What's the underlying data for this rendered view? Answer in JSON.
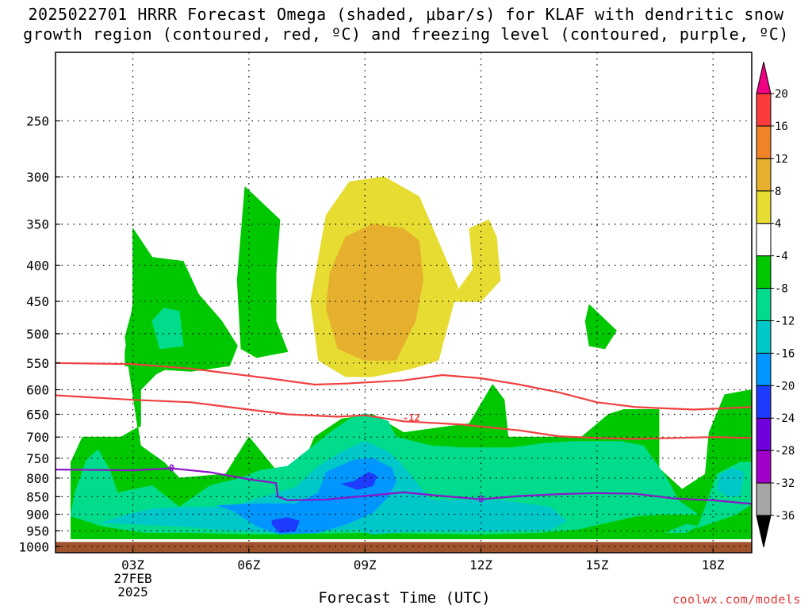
{
  "title": {
    "line1": "2025022701 HRRR Forecast Omega (shaded, μbar/s) for KLAF with dendritic snow",
    "line2": "growth region (contoured, red, ºC) and freezing level (contoured, purple, ºC)"
  },
  "xlabel": "Forecast Time (UTC)",
  "credit": "coolwx.com/models",
  "chart_data": {
    "type": "heatmap",
    "x": {
      "unit": "hour UTC",
      "range": [
        1,
        19
      ],
      "ticks": [
        {
          "value": 3,
          "label": "03Z",
          "sub": [
            "27FEB",
            "2025"
          ]
        },
        {
          "value": 6,
          "label": "06Z"
        },
        {
          "value": 9,
          "label": "09Z"
        },
        {
          "value": 12,
          "label": "12Z"
        },
        {
          "value": 15,
          "label": "15Z"
        },
        {
          "value": 18,
          "label": "18Z"
        }
      ]
    },
    "y": {
      "unit": "hPa",
      "scale": "log",
      "range": [
        1020,
        200
      ],
      "ticks": [
        250,
        300,
        350,
        400,
        450,
        500,
        550,
        600,
        650,
        700,
        750,
        800,
        850,
        900,
        950,
        1000
      ]
    },
    "ground_band": {
      "from": 985,
      "to": 1020,
      "color": "#a0522d"
    },
    "grid": true,
    "colorbar": {
      "levels": [
        -36,
        -32,
        -28,
        -24,
        -20,
        -16,
        -12,
        -8,
        -4,
        4,
        8,
        12,
        16,
        20
      ],
      "colors": [
        "#000000",
        "#a6a6a6",
        "#a000c8",
        "#6e00dc",
        "#1e3cff",
        "#0096ff",
        "#00c8c8",
        "#00dc8c",
        "#00c800",
        "#ffffff",
        "#e6dc32",
        "#e6af2d",
        "#f08228",
        "#fa3c3c",
        "#f00082"
      ]
    },
    "omega_regions": [
      {
        "level": "-8 to -4",
        "color": "#00c800",
        "points": [
          [
            1.4,
            975
          ],
          [
            19,
            975
          ],
          [
            19,
            600
          ],
          [
            18.3,
            610
          ],
          [
            17.9,
            690
          ],
          [
            17.8,
            790
          ],
          [
            17.2,
            830
          ],
          [
            16.6,
            775
          ],
          [
            16.6,
            640
          ],
          [
            15.9,
            640
          ],
          [
            15.7,
            640
          ],
          [
            15.3,
            650
          ],
          [
            14.6,
            700
          ],
          [
            12.7,
            700
          ],
          [
            12.6,
            620
          ],
          [
            12.3,
            590
          ],
          [
            11.7,
            670
          ],
          [
            10,
            690
          ],
          [
            9.2,
            650
          ],
          [
            8.4,
            660
          ],
          [
            7.7,
            700
          ],
          [
            7.3,
            790
          ],
          [
            6.7,
            780
          ],
          [
            6,
            700
          ],
          [
            5.4,
            790
          ],
          [
            4.2,
            800
          ],
          [
            3.8,
            760
          ],
          [
            3.2,
            720
          ],
          [
            2.9,
            560
          ],
          [
            2.8,
            505
          ],
          [
            3.2,
            420
          ],
          [
            4.1,
            435
          ],
          [
            4.7,
            490
          ],
          [
            4.6,
            535
          ],
          [
            3.6,
            570
          ],
          [
            3.2,
            600
          ],
          [
            3.2,
            675
          ],
          [
            2.7,
            700
          ],
          [
            1.7,
            700
          ],
          [
            1.4,
            760
          ]
        ]
      },
      {
        "level": "-8 to -4",
        "color": "#00c800",
        "points": [
          [
            2.8,
            555
          ],
          [
            2.8,
            530
          ],
          [
            3,
            455
          ],
          [
            3,
            355
          ],
          [
            3.5,
            390
          ],
          [
            4.3,
            395
          ],
          [
            4.7,
            440
          ],
          [
            5.3,
            480
          ],
          [
            5.7,
            520
          ],
          [
            5.5,
            555
          ],
          [
            4.5,
            565
          ],
          [
            3.4,
            560
          ]
        ]
      },
      {
        "level": "-8 to -4",
        "color": "#00c800",
        "points": [
          [
            5.8,
            525
          ],
          [
            5.7,
            420
          ],
          [
            5.9,
            310
          ],
          [
            6.8,
            345
          ],
          [
            6.7,
            410
          ],
          [
            6.7,
            480
          ],
          [
            7,
            530
          ],
          [
            6.2,
            540
          ]
        ]
      },
      {
        "level": "-8 to -4",
        "color": "#00c800",
        "points": [
          [
            14.7,
            480
          ],
          [
            14.8,
            455
          ],
          [
            15.5,
            495
          ],
          [
            15.2,
            525
          ],
          [
            14.8,
            520
          ]
        ]
      },
      {
        "level": "-12 to -8",
        "color": "#00dc8c",
        "points": [
          [
            1.4,
            905
          ],
          [
            1.5,
            840
          ],
          [
            1.8,
            755
          ],
          [
            2.1,
            730
          ],
          [
            2.4,
            780
          ],
          [
            2.6,
            840
          ],
          [
            3.5,
            820
          ],
          [
            4.2,
            880
          ],
          [
            5,
            820
          ],
          [
            5.8,
            800
          ],
          [
            6.3,
            780
          ],
          [
            7,
            770
          ],
          [
            8.1,
            690
          ],
          [
            8.6,
            660
          ],
          [
            9,
            648
          ],
          [
            9.6,
            665
          ],
          [
            9.8,
            700
          ],
          [
            10.7,
            720
          ],
          [
            11.5,
            725
          ],
          [
            12.8,
            725
          ],
          [
            13.6,
            715
          ],
          [
            14.4,
            710
          ],
          [
            15.6,
            710
          ],
          [
            16.2,
            720
          ],
          [
            16.8,
            800
          ],
          [
            17.1,
            860
          ],
          [
            17.6,
            900
          ],
          [
            17.3,
            900
          ],
          [
            16.7,
            900
          ],
          [
            16,
            905
          ],
          [
            14.5,
            945
          ],
          [
            13.5,
            955
          ],
          [
            12,
            960
          ],
          [
            9,
            955
          ],
          [
            6.2,
            960
          ],
          [
            4.5,
            955
          ],
          [
            3.3,
            955
          ],
          [
            2.2,
            935
          ]
        ]
      },
      {
        "level": "-12 to -8",
        "color": "#00dc8c",
        "points": [
          [
            3.5,
            480
          ],
          [
            3.8,
            460
          ],
          [
            4.2,
            465
          ],
          [
            4.3,
            520
          ],
          [
            3.7,
            525
          ]
        ]
      },
      {
        "level": "-12 to -8",
        "color": "#00dc8c",
        "points": [
          [
            17.6,
            940
          ],
          [
            17.8,
            880
          ],
          [
            18.1,
            790
          ],
          [
            18.7,
            760
          ],
          [
            19,
            760
          ],
          [
            19,
            870
          ],
          [
            18.6,
            900
          ]
        ]
      },
      {
        "level": "-12 to -8",
        "color": "#00dc8c",
        "points": [
          [
            16.8,
            955
          ],
          [
            17.3,
            930
          ],
          [
            17.6,
            935
          ],
          [
            17.3,
            955
          ]
        ]
      },
      {
        "level": "-16 to -12",
        "color": "#00c8c8",
        "points": [
          [
            2.2,
            925
          ],
          [
            2.9,
            900
          ],
          [
            3.5,
            885
          ],
          [
            4.5,
            880
          ],
          [
            5.5,
            880
          ],
          [
            6.1,
            860
          ],
          [
            7.2,
            825
          ],
          [
            7.8,
            770
          ],
          [
            8.4,
            735
          ],
          [
            9,
            710
          ],
          [
            9.6,
            735
          ],
          [
            9.9,
            760
          ],
          [
            10.7,
            860
          ],
          [
            12.5,
            860
          ],
          [
            13.8,
            880
          ],
          [
            14.2,
            920
          ],
          [
            13.8,
            945
          ],
          [
            12.2,
            950
          ],
          [
            10.3,
            950
          ],
          [
            9.2,
            960
          ],
          [
            8.8,
            945
          ],
          [
            6.6,
            955
          ],
          [
            5.2,
            945
          ],
          [
            4.2,
            935
          ]
        ]
      },
      {
        "level": "-16 to -12",
        "color": "#00c8c8",
        "points": [
          [
            18.1,
            830
          ],
          [
            18.2,
            790
          ],
          [
            18.5,
            775
          ],
          [
            18.8,
            785
          ],
          [
            18.7,
            845
          ],
          [
            18.4,
            850
          ]
        ]
      },
      {
        "level": "-20 to -16",
        "color": "#0096ff",
        "points": [
          [
            5.2,
            875
          ],
          [
            6.2,
            870
          ],
          [
            7.2,
            870
          ],
          [
            7.8,
            840
          ],
          [
            8,
            785
          ],
          [
            8.7,
            755
          ],
          [
            9.2,
            750
          ],
          [
            9.7,
            775
          ],
          [
            9.8,
            810
          ],
          [
            9.6,
            850
          ],
          [
            9.2,
            895
          ],
          [
            8.6,
            925
          ],
          [
            7.8,
            955
          ],
          [
            6.8,
            960
          ],
          [
            6.2,
            935
          ],
          [
            5.6,
            890
          ]
        ]
      },
      {
        "level": "-24 to -20",
        "color": "#1e3cff",
        "points": [
          [
            8.7,
            810
          ],
          [
            9.1,
            785
          ],
          [
            9.3,
            795
          ],
          [
            9.2,
            820
          ],
          [
            8.8,
            830
          ],
          [
            8.4,
            815
          ]
        ]
      },
      {
        "level": "-24 to -20",
        "color": "#1e3cff",
        "points": [
          [
            6.6,
            918
          ],
          [
            7,
            910
          ],
          [
            7.3,
            920
          ],
          [
            7.2,
            950
          ],
          [
            6.8,
            955
          ],
          [
            6.6,
            930
          ]
        ]
      },
      {
        "level": "4 to 8",
        "color": "#e6dc32",
        "points": [
          [
            7.8,
            545
          ],
          [
            7.6,
            450
          ],
          [
            8,
            340
          ],
          [
            8.6,
            305
          ],
          [
            9.5,
            300
          ],
          [
            10.4,
            320
          ],
          [
            11.4,
            430
          ],
          [
            10.9,
            545
          ],
          [
            10.2,
            560
          ],
          [
            9.2,
            575
          ],
          [
            8.5,
            575
          ]
        ]
      },
      {
        "level": "4 to 8",
        "color": "#e6dc32",
        "points": [
          [
            11.2,
            450
          ],
          [
            11.8,
            405
          ],
          [
            11.7,
            355
          ],
          [
            12.2,
            345
          ],
          [
            12.4,
            365
          ],
          [
            12.5,
            420
          ],
          [
            12,
            450
          ]
        ]
      },
      {
        "level": "8 to 12",
        "color": "#e6af2d",
        "points": [
          [
            8,
            460
          ],
          [
            8.1,
            410
          ],
          [
            8.5,
            365
          ],
          [
            9.2,
            350
          ],
          [
            10,
            355
          ],
          [
            10.4,
            370
          ],
          [
            10.5,
            420
          ],
          [
            10.3,
            480
          ],
          [
            9.8,
            545
          ],
          [
            9,
            545
          ],
          [
            8.3,
            525
          ]
        ]
      }
    ],
    "snow_growth_contours": [
      {
        "points": [
          [
            1,
            550
          ],
          [
            3,
            552
          ],
          [
            4.5,
            560
          ],
          [
            6.5,
            578
          ],
          [
            7.7,
            590
          ],
          [
            8.5,
            588
          ],
          [
            10,
            582
          ],
          [
            11,
            572
          ],
          [
            12,
            578
          ],
          [
            13,
            590
          ],
          [
            14,
            605
          ],
          [
            15,
            625
          ],
          [
            16,
            635
          ],
          [
            17.5,
            640
          ],
          [
            19,
            635
          ]
        ]
      },
      {
        "label": "-12",
        "points": [
          [
            1,
            611
          ],
          [
            3,
            620
          ],
          [
            4.5,
            625
          ],
          [
            6,
            640
          ],
          [
            7,
            650
          ],
          [
            8.3,
            655
          ],
          [
            9,
            652
          ],
          [
            10,
            665
          ],
          [
            11.5,
            672
          ],
          [
            13,
            685
          ],
          [
            14,
            698
          ],
          [
            15,
            702
          ],
          [
            16,
            704
          ],
          [
            17,
            702
          ],
          [
            18,
            700
          ],
          [
            19,
            702
          ]
        ]
      }
    ],
    "freezing_level_contours": [
      {
        "labels": [
          "0",
          "0"
        ],
        "points": [
          [
            1,
            778
          ],
          [
            3,
            780
          ],
          [
            4,
            775
          ],
          [
            5,
            785
          ],
          [
            6,
            803
          ],
          [
            6.7,
            813
          ],
          [
            6.75,
            850
          ],
          [
            7,
            860
          ],
          [
            8,
            858
          ],
          [
            9,
            848
          ],
          [
            10,
            838
          ],
          [
            11,
            848
          ],
          [
            12,
            857
          ],
          [
            13,
            848
          ],
          [
            14,
            843
          ],
          [
            15,
            840
          ],
          [
            16,
            842
          ],
          [
            17,
            855
          ],
          [
            18,
            860
          ],
          [
            19,
            870
          ]
        ]
      }
    ],
    "contour_colors": {
      "snow_growth": "#f04040",
      "freezing_level": "#8c14c8"
    }
  }
}
